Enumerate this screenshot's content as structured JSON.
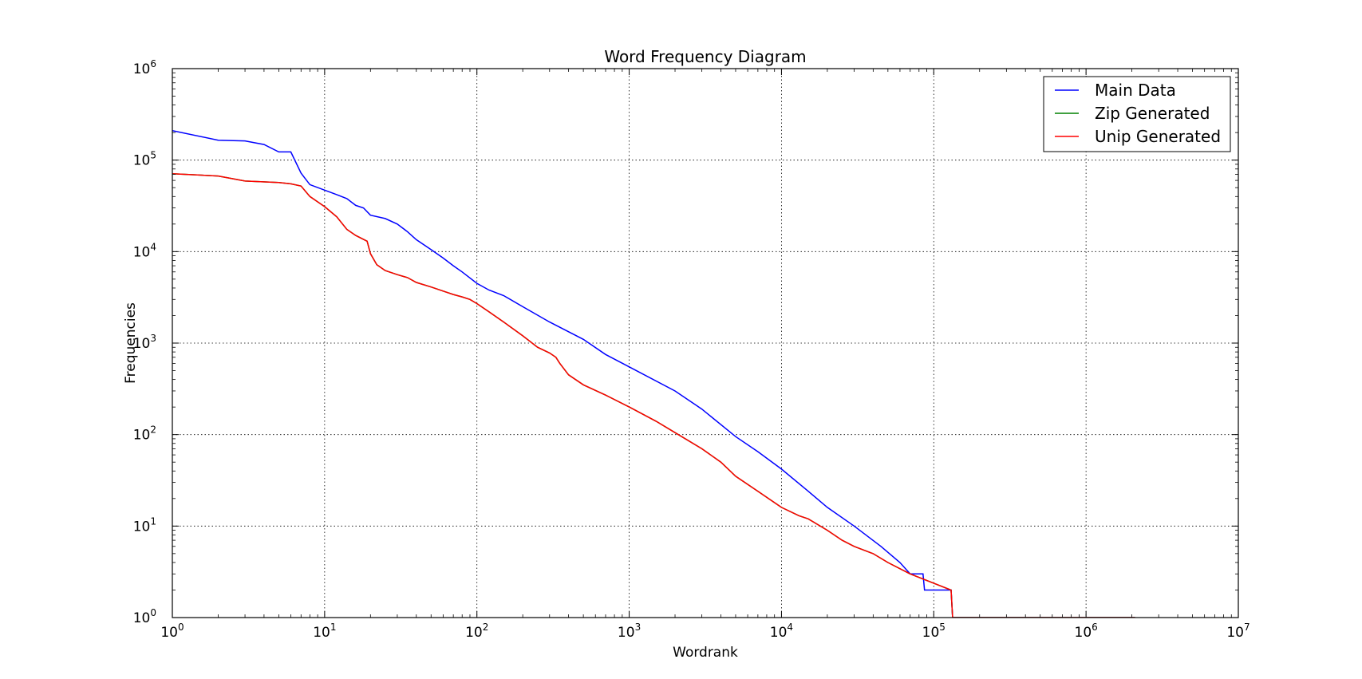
{
  "chart_data": {
    "type": "line",
    "title": "Word Frequency Diagram",
    "xlabel": "Wordrank",
    "ylabel": "Frequencies",
    "xscale": "log",
    "yscale": "log",
    "xlim": [
      1,
      10000000
    ],
    "ylim": [
      1,
      1000000
    ],
    "grid": true,
    "legend_position": "top-right",
    "x_tick_labels": [
      {
        "base": "10",
        "exp": "0"
      },
      {
        "base": "10",
        "exp": "1"
      },
      {
        "base": "10",
        "exp": "2"
      },
      {
        "base": "10",
        "exp": "3"
      },
      {
        "base": "10",
        "exp": "4"
      },
      {
        "base": "10",
        "exp": "5"
      },
      {
        "base": "10",
        "exp": "6"
      },
      {
        "base": "10",
        "exp": "7"
      }
    ],
    "y_tick_labels": [
      {
        "base": "10",
        "exp": "0"
      },
      {
        "base": "10",
        "exp": "1"
      },
      {
        "base": "10",
        "exp": "2"
      },
      {
        "base": "10",
        "exp": "3"
      },
      {
        "base": "10",
        "exp": "4"
      },
      {
        "base": "10",
        "exp": "5"
      },
      {
        "base": "10",
        "exp": "6"
      }
    ],
    "series": [
      {
        "name": "Main Data",
        "color": "#0000ff",
        "x": [
          1,
          2,
          3,
          4,
          5,
          6,
          7,
          8,
          10,
          12,
          14,
          16,
          18,
          20,
          25,
          30,
          35,
          40,
          50,
          60,
          70,
          80,
          100,
          120,
          150,
          200,
          300,
          500,
          700,
          1000,
          2000,
          3000,
          5000,
          7000,
          10000,
          15000,
          20000,
          30000,
          45000,
          60000,
          70000,
          85000,
          87000,
          130000,
          133000,
          2100000
        ],
        "y": [
          210000,
          165000,
          162000,
          148000,
          123000,
          123000,
          72000,
          54000,
          47000,
          42000,
          38000,
          32000,
          30000,
          25000,
          23000,
          20000,
          16500,
          13500,
          10500,
          8500,
          7000,
          6000,
          4500,
          3800,
          3300,
          2500,
          1700,
          1100,
          750,
          550,
          300,
          190,
          95,
          65,
          42,
          24,
          16,
          10,
          6,
          4,
          3,
          3,
          2,
          2,
          1,
          1
        ]
      },
      {
        "name": "Zip Generated",
        "color": "#008000",
        "x": [
          1,
          2,
          3,
          5,
          6,
          7,
          8,
          10,
          12,
          14,
          16,
          19,
          20,
          22,
          25,
          30,
          35,
          40,
          50,
          60,
          70,
          80,
          90,
          100,
          120,
          150,
          200,
          250,
          300,
          330,
          350,
          400,
          500,
          700,
          1000,
          1500,
          2000,
          3000,
          4000,
          5000,
          7000,
          10000,
          13000,
          15000,
          20000,
          25000,
          30000,
          40000,
          50000,
          70000,
          130000,
          133000,
          2100000
        ],
        "y": [
          71000,
          67000,
          59000,
          57000,
          55000,
          52000,
          40000,
          31000,
          24000,
          17500,
          15000,
          13000,
          9500,
          7200,
          6200,
          5600,
          5200,
          4600,
          4100,
          3700,
          3400,
          3200,
          3000,
          2700,
          2200,
          1700,
          1200,
          900,
          780,
          700,
          600,
          450,
          350,
          270,
          200,
          140,
          105,
          70,
          50,
          35,
          24,
          16,
          13,
          12,
          9,
          7,
          6,
          5,
          4,
          3,
          2,
          1,
          1
        ]
      },
      {
        "name": "Unip Generated",
        "color": "#ff0000",
        "x": [
          1,
          2,
          3,
          5,
          6,
          7,
          8,
          10,
          12,
          14,
          16,
          19,
          20,
          22,
          25,
          30,
          35,
          40,
          50,
          60,
          70,
          80,
          90,
          100,
          120,
          150,
          200,
          250,
          300,
          330,
          350,
          400,
          500,
          700,
          1000,
          1500,
          2000,
          3000,
          4000,
          5000,
          7000,
          10000,
          13000,
          15000,
          20000,
          25000,
          30000,
          40000,
          50000,
          70000,
          130000,
          133000,
          2100000
        ],
        "y": [
          71000,
          67000,
          59000,
          57000,
          55000,
          52000,
          40000,
          31000,
          24000,
          17500,
          15000,
          13000,
          9500,
          7200,
          6200,
          5600,
          5200,
          4600,
          4100,
          3700,
          3400,
          3200,
          3000,
          2700,
          2200,
          1700,
          1200,
          900,
          780,
          700,
          600,
          450,
          350,
          270,
          200,
          140,
          105,
          70,
          50,
          35,
          24,
          16,
          13,
          12,
          9,
          7,
          6,
          5,
          4,
          3,
          2,
          1,
          1
        ]
      }
    ]
  }
}
